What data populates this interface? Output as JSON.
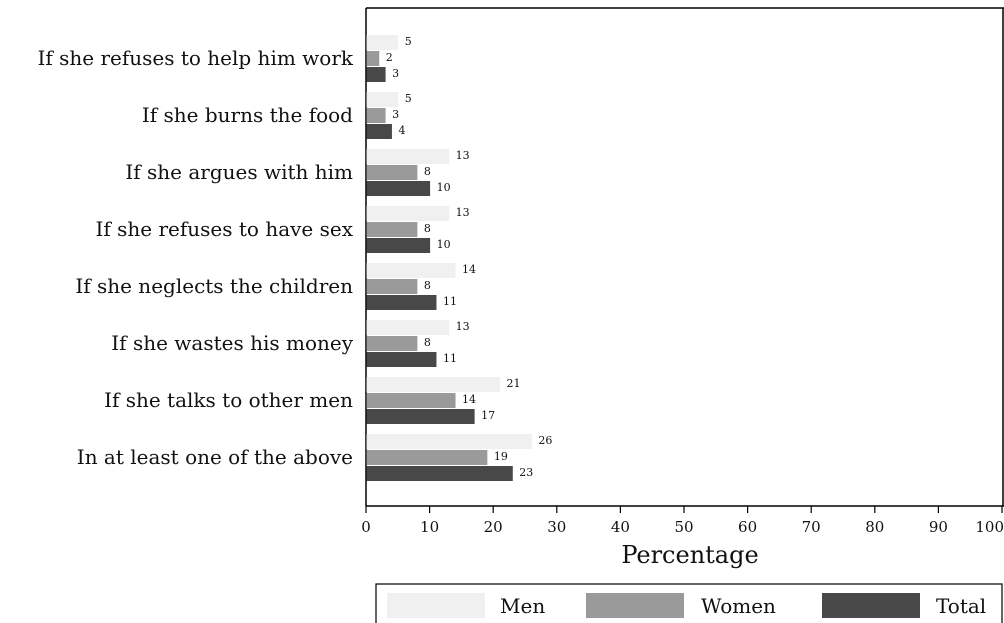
{
  "chart_data": {
    "type": "bar",
    "orientation": "horizontal",
    "categories": [
      "If she refuses to help him work",
      "If she burns the food",
      "If she argues with him",
      "If she refuses to have sex",
      "If she neglects the children",
      "If she wastes his money",
      "If she talks to other men",
      "In at least one of the above"
    ],
    "series": [
      {
        "name": "Men",
        "color": "#f0f0f0",
        "values": [
          5,
          5,
          13,
          13,
          14,
          13,
          21,
          26
        ]
      },
      {
        "name": "Women",
        "color": "#9a9a9a",
        "values": [
          2,
          3,
          8,
          8,
          8,
          8,
          14,
          19
        ]
      },
      {
        "name": "Total",
        "color": "#484848",
        "values": [
          3,
          4,
          10,
          10,
          11,
          11,
          17,
          23
        ]
      }
    ],
    "xlabel": "Percentage",
    "xlim": [
      0,
      100
    ],
    "xticks": [
      0,
      10,
      20,
      30,
      40,
      50,
      60,
      70,
      80,
      90,
      100
    ],
    "legend_position": "bottom",
    "grid": false
  }
}
